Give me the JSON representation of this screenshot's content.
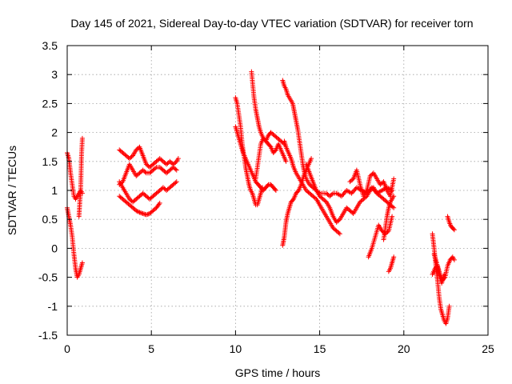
{
  "chart_data": {
    "type": "scatter",
    "title": "Day 145 of 2021, Sidereal Day-to-day VTEC variation (SDTVAR) for receiver torn",
    "xlabel": "GPS time / hours",
    "ylabel": "SDTVAR / TECUs",
    "xlim": [
      0,
      25
    ],
    "ylim": [
      -1.5,
      3.5
    ],
    "xticks": [
      "0",
      "5",
      "10",
      "15",
      "20",
      "25"
    ],
    "yticks": [
      "3.5",
      "3",
      "2.5",
      "2",
      "1.5",
      "1",
      "0.5",
      "0",
      "-0.5",
      "-1",
      "-1.5"
    ],
    "grid": true,
    "marker": "+",
    "color": "#ff0000",
    "tracks": [
      {
        "x": [
          0.0,
          0.1,
          0.2,
          0.3,
          0.4,
          0.5,
          0.6,
          0.7,
          0.8,
          0.9
        ],
        "y": [
          1.65,
          1.55,
          1.3,
          1.1,
          0.9,
          0.85,
          0.9,
          0.95,
          1.0,
          0.95
        ]
      },
      {
        "x": [
          0.0,
          0.1,
          0.2,
          0.3,
          0.4,
          0.5,
          0.6,
          0.7,
          0.8,
          0.9
        ],
        "y": [
          0.7,
          0.55,
          0.4,
          0.2,
          -0.1,
          -0.35,
          -0.5,
          -0.45,
          -0.35,
          -0.25
        ]
      },
      {
        "x": [
          0.7,
          0.75,
          0.8,
          0.85,
          0.9
        ],
        "y": [
          0.55,
          0.8,
          1.0,
          1.6,
          1.9
        ]
      },
      {
        "x": [
          3.1,
          3.3,
          3.5,
          3.7,
          3.9,
          4.1,
          4.3,
          4.5,
          4.7,
          4.9,
          5.1,
          5.3,
          5.5,
          5.7,
          5.9,
          6.1,
          6.3,
          6.5,
          6.6
        ],
        "y": [
          1.7,
          1.65,
          1.6,
          1.55,
          1.6,
          1.7,
          1.75,
          1.6,
          1.45,
          1.4,
          1.45,
          1.5,
          1.55,
          1.5,
          1.45,
          1.5,
          1.45,
          1.5,
          1.55
        ]
      },
      {
        "x": [
          3.1,
          3.3,
          3.5,
          3.7,
          3.9,
          4.1,
          4.3,
          4.5,
          4.7,
          4.9,
          5.1,
          5.3,
          5.5,
          5.7,
          5.9,
          6.1,
          6.3,
          6.5
        ],
        "y": [
          1.1,
          1.15,
          1.3,
          1.45,
          1.35,
          1.25,
          1.3,
          1.35,
          1.3,
          1.3,
          1.35,
          1.4,
          1.4,
          1.35,
          1.3,
          1.35,
          1.4,
          1.35
        ]
      },
      {
        "x": [
          3.1,
          3.3,
          3.5,
          3.7,
          3.9,
          4.1,
          4.3,
          4.5,
          4.7,
          4.9,
          5.1,
          5.3,
          5.5,
          5.7,
          5.9,
          6.1,
          6.3,
          6.5
        ],
        "y": [
          1.15,
          1.05,
          0.95,
          0.85,
          0.8,
          0.85,
          0.9,
          0.95,
          0.9,
          0.85,
          0.9,
          0.95,
          1.0,
          1.05,
          1.0,
          1.05,
          1.1,
          1.15
        ]
      },
      {
        "x": [
          3.1,
          3.3,
          3.5,
          3.7,
          3.9,
          4.1,
          4.3,
          4.5,
          4.7,
          4.9,
          5.1,
          5.3,
          5.5
        ],
        "y": [
          0.9,
          0.85,
          0.8,
          0.75,
          0.7,
          0.65,
          0.62,
          0.6,
          0.58,
          0.6,
          0.65,
          0.7,
          0.78
        ]
      },
      {
        "x": [
          10.0,
          10.1,
          10.2,
          10.3,
          10.4,
          10.5,
          10.6,
          10.7,
          10.8,
          10.9,
          11.0,
          11.1,
          11.2,
          11.3,
          11.4,
          11.5,
          11.6
        ],
        "y": [
          2.6,
          2.5,
          2.3,
          2.1,
          1.8,
          1.6,
          1.4,
          1.25,
          1.1,
          1.0,
          0.95,
          0.85,
          0.75,
          0.75,
          0.85,
          0.95,
          1.05
        ]
      },
      {
        "x": [
          10.0,
          10.15,
          10.3,
          10.45,
          10.6,
          10.75,
          10.9,
          11.05,
          11.2,
          11.35,
          11.5,
          11.65,
          11.8,
          11.95,
          12.1,
          12.25,
          12.4
        ],
        "y": [
          2.1,
          1.95,
          1.8,
          1.65,
          1.55,
          1.45,
          1.35,
          1.25,
          1.15,
          1.1,
          1.05,
          1.0,
          1.05,
          1.1,
          1.1,
          1.05,
          1.0
        ]
      },
      {
        "x": [
          10.95,
          11.0,
          11.1,
          11.2,
          11.3,
          11.4,
          11.5,
          11.65,
          11.8,
          11.95,
          12.1,
          12.3,
          12.5,
          12.7,
          12.9
        ],
        "y": [
          3.05,
          2.9,
          2.6,
          2.4,
          2.25,
          2.1,
          2.0,
          1.9,
          1.85,
          1.95,
          2.0,
          1.95,
          1.9,
          1.85,
          1.8
        ]
      },
      {
        "x": [
          11.2,
          11.35,
          11.5,
          11.65,
          11.8,
          11.95,
          12.1,
          12.25,
          12.4,
          12.55,
          12.7,
          12.85,
          13.0
        ],
        "y": [
          1.2,
          1.5,
          1.8,
          1.9,
          1.85,
          1.8,
          1.75,
          1.65,
          1.7,
          1.8,
          1.7,
          1.6,
          1.5
        ]
      },
      {
        "x": [
          12.8,
          12.85,
          12.9,
          13.0,
          13.1,
          13.2,
          13.3,
          13.4,
          13.5,
          13.6,
          13.7,
          13.8,
          13.9,
          14.0,
          14.1,
          14.2,
          14.4,
          14.6,
          14.8,
          15.0,
          15.2,
          15.4,
          15.6,
          15.8,
          16.0,
          16.3,
          16.6,
          16.9,
          17.2,
          17.5,
          17.8,
          18.1,
          18.4,
          18.7,
          19.0,
          19.3
        ],
        "y": [
          2.9,
          2.85,
          2.8,
          2.75,
          2.65,
          2.6,
          2.55,
          2.5,
          2.35,
          2.2,
          2.05,
          1.85,
          1.65,
          1.45,
          1.3,
          1.2,
          1.1,
          1.05,
          1.0,
          0.95,
          0.95,
          0.95,
          0.9,
          0.95,
          0.95,
          0.9,
          1.0,
          0.95,
          1.05,
          1.0,
          0.95,
          1.05,
          0.95,
          1.0,
          1.05,
          1.0
        ]
      },
      {
        "x": [
          12.8,
          12.9,
          13.0,
          13.1,
          13.2,
          13.3,
          13.45,
          13.6,
          13.75,
          13.9,
          14.05,
          14.2,
          14.35,
          14.5
        ],
        "y": [
          0.05,
          0.2,
          0.45,
          0.6,
          0.7,
          0.8,
          0.85,
          0.95,
          1.0,
          1.1,
          1.25,
          1.35,
          1.45,
          1.55
        ]
      },
      {
        "x": [
          12.9,
          13.0,
          13.15,
          13.3,
          13.45,
          13.6,
          13.8,
          14.0,
          14.2,
          14.4,
          14.6,
          14.8,
          15.0,
          15.2,
          15.4,
          15.6,
          15.8,
          16.0,
          16.2
        ],
        "y": [
          1.85,
          1.75,
          1.65,
          1.55,
          1.4,
          1.3,
          1.2,
          1.1,
          1.0,
          0.95,
          0.9,
          0.85,
          0.75,
          0.65,
          0.55,
          0.45,
          0.35,
          0.3,
          0.25
        ]
      },
      {
        "x": [
          14.2,
          14.4,
          14.6,
          14.8,
          15.0,
          15.2,
          15.4,
          15.6,
          15.8,
          16.0,
          16.2,
          16.4,
          16.6,
          16.8,
          17.0,
          17.2,
          17.4,
          17.6,
          17.8,
          18.0,
          18.2,
          18.4,
          18.6,
          18.8,
          19.0,
          19.2,
          19.4
        ],
        "y": [
          1.45,
          1.3,
          1.15,
          1.0,
          0.9,
          0.85,
          0.8,
          0.7,
          0.55,
          0.45,
          0.5,
          0.6,
          0.7,
          0.65,
          0.6,
          0.7,
          0.8,
          0.85,
          0.9,
          1.0,
          1.05,
          0.95,
          0.9,
          0.85,
          0.8,
          0.75,
          0.7
        ]
      },
      {
        "x": [
          16.8,
          17.0,
          17.2,
          17.4,
          17.6,
          17.8,
          18.0,
          18.2,
          18.4,
          18.6,
          18.8,
          19.0,
          19.2,
          19.4
        ],
        "y": [
          1.15,
          1.2,
          1.35,
          1.1,
          0.9,
          1.0,
          1.25,
          1.3,
          1.2,
          1.1,
          1.15,
          1.0,
          0.9,
          1.2
        ]
      },
      {
        "x": [
          17.9,
          18.1,
          18.3,
          18.5,
          18.7,
          18.9,
          19.1,
          19.3
        ],
        "y": [
          -0.15,
          0.0,
          0.2,
          0.4,
          0.3,
          0.25,
          0.3,
          0.55
        ]
      },
      {
        "x": [
          18.8,
          18.9,
          19.0,
          19.1,
          19.2,
          19.3,
          19.4
        ],
        "y": [
          0.15,
          0.35,
          0.55,
          0.7,
          0.8,
          0.85,
          0.9
        ]
      },
      {
        "x": [
          19.1,
          19.2,
          19.3,
          19.4
        ],
        "y": [
          -0.4,
          -0.35,
          -0.25,
          -0.15
        ]
      },
      {
        "x": [
          21.7,
          21.8,
          21.9,
          22.0,
          22.1,
          22.2,
          22.3,
          22.4,
          22.5,
          22.6,
          22.7
        ],
        "y": [
          0.25,
          0.0,
          -0.3,
          -0.55,
          -0.85,
          -1.05,
          -1.15,
          -1.25,
          -1.3,
          -1.2,
          -1.0
        ]
      },
      {
        "x": [
          21.7,
          21.85,
          22.0,
          22.15,
          22.3,
          22.45,
          22.6,
          22.75,
          22.9,
          23.0
        ],
        "y": [
          -0.45,
          -0.35,
          -0.3,
          -0.45,
          -0.55,
          -0.5,
          -0.3,
          -0.2,
          -0.15,
          -0.2
        ]
      },
      {
        "x": [
          21.8,
          21.95,
          22.1,
          22.25,
          22.4
        ],
        "y": [
          -0.1,
          -0.25,
          -0.45,
          -0.6,
          -0.45
        ]
      },
      {
        "x": [
          22.6,
          22.7,
          22.8,
          22.9,
          23.0
        ],
        "y": [
          0.55,
          0.45,
          0.38,
          0.35,
          0.32
        ]
      }
    ]
  }
}
